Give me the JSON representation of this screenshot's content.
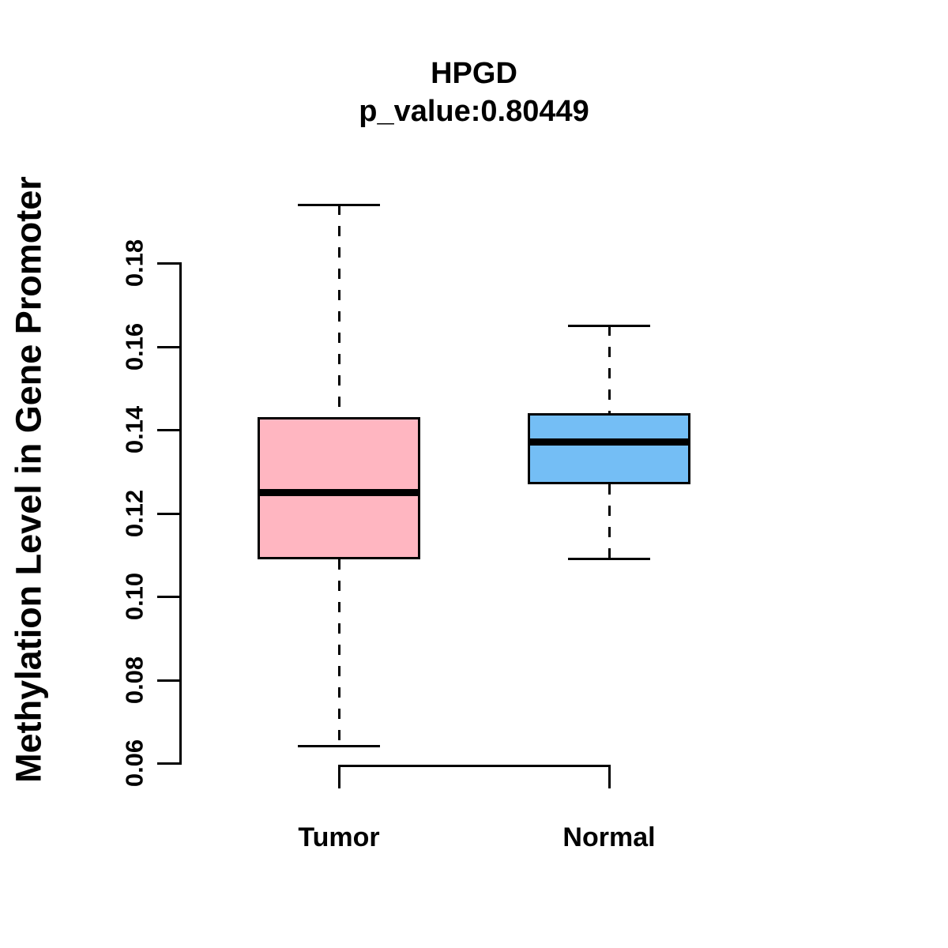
{
  "chart_data": {
    "type": "boxplot",
    "title": "HPGD",
    "subtitle": "p_value:0.80449",
    "ylabel": "Methylation Level in Gene Promoter",
    "xlabel": "",
    "y_axis": {
      "min": 0.06,
      "max": 0.18,
      "tick_labels": [
        "0.06",
        "0.08",
        "0.10",
        "0.12",
        "0.14",
        "0.16",
        "0.18"
      ],
      "tick_values": [
        0.06,
        0.08,
        0.1,
        0.12,
        0.14,
        0.16,
        0.18
      ]
    },
    "groups": [
      {
        "label": "Tumor",
        "color": "#FFB6C1",
        "stats": {
          "min": 0.064,
          "q1": 0.109,
          "median": 0.125,
          "q3": 0.143,
          "max": 0.194
        }
      },
      {
        "label": "Normal",
        "color": "#74BEF5",
        "stats": {
          "min": 0.109,
          "q1": 0.127,
          "median": 0.137,
          "q3": 0.144,
          "max": 0.165
        }
      }
    ],
    "line_color": "#000000",
    "background_color": "#FFFFFF",
    "legend": "none",
    "grid": "off",
    "whisker_style": "dashed"
  }
}
